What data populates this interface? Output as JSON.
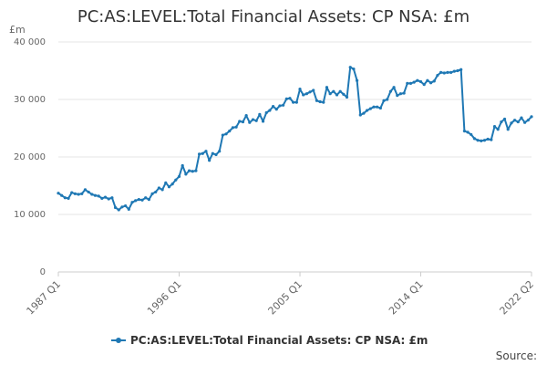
{
  "chart_data": {
    "type": "line",
    "title": "PC:AS:LEVEL:Total Financial Assets: CP NSA: £m",
    "ylabel": "£m",
    "ylim": [
      0,
      40000
    ],
    "yticks": [
      0,
      10000,
      20000,
      30000,
      40000
    ],
    "ytick_labels": [
      "0",
      "10 000",
      "20 000",
      "30 000",
      "40 000"
    ],
    "xticks": [
      {
        "quarter": "1987 Q1",
        "label": "1987 Q1"
      },
      {
        "quarter": "1996 Q1",
        "label": "1996 Q1"
      },
      {
        "quarter": "2005 Q1",
        "label": "2005 Q1"
      },
      {
        "quarter": "2014 Q1",
        "label": "2014 Q1"
      },
      {
        "quarter": "2022 Q2",
        "label": "2022 Q2"
      }
    ],
    "grid": "horizontal",
    "legend_position": "bottom",
    "series": [
      {
        "name": "PC:AS:LEVEL:Total Financial Assets: CP NSA: £m",
        "color": "#1f78b4",
        "points": [
          [
            "1987 Q1",
            13700
          ],
          [
            "1987 Q2",
            13300
          ],
          [
            "1987 Q3",
            12900
          ],
          [
            "1987 Q4",
            12800
          ],
          [
            "1988 Q1",
            13800
          ],
          [
            "1988 Q2",
            13600
          ],
          [
            "1988 Q3",
            13500
          ],
          [
            "1988 Q4",
            13600
          ],
          [
            "1989 Q1",
            14300
          ],
          [
            "1989 Q2",
            13900
          ],
          [
            "1989 Q3",
            13500
          ],
          [
            "1989 Q4",
            13300
          ],
          [
            "1990 Q1",
            13200
          ],
          [
            "1990 Q2",
            12800
          ],
          [
            "1990 Q3",
            13000
          ],
          [
            "1990 Q4",
            12700
          ],
          [
            "1991 Q1",
            12900
          ],
          [
            "1991 Q2",
            11200
          ],
          [
            "1991 Q3",
            10800
          ],
          [
            "1991 Q4",
            11300
          ],
          [
            "1992 Q1",
            11500
          ],
          [
            "1992 Q2",
            10900
          ],
          [
            "1992 Q3",
            12100
          ],
          [
            "1992 Q4",
            12400
          ],
          [
            "1993 Q1",
            12600
          ],
          [
            "1993 Q2",
            12500
          ],
          [
            "1993 Q3",
            12900
          ],
          [
            "1993 Q4",
            12600
          ],
          [
            "1994 Q1",
            13600
          ],
          [
            "1994 Q2",
            13900
          ],
          [
            "1994 Q3",
            14600
          ],
          [
            "1994 Q4",
            14300
          ],
          [
            "1995 Q1",
            15500
          ],
          [
            "1995 Q2",
            14800
          ],
          [
            "1995 Q3",
            15300
          ],
          [
            "1995 Q4",
            16000
          ],
          [
            "1996 Q1",
            16600
          ],
          [
            "1996 Q2",
            18500
          ],
          [
            "1996 Q3",
            17000
          ],
          [
            "1996 Q4",
            17600
          ],
          [
            "1997 Q1",
            17500
          ],
          [
            "1997 Q2",
            17600
          ],
          [
            "1997 Q3",
            20500
          ],
          [
            "1997 Q4",
            20600
          ],
          [
            "1998 Q1",
            21000
          ],
          [
            "1998 Q2",
            19400
          ],
          [
            "1998 Q3",
            20600
          ],
          [
            "1998 Q4",
            20400
          ],
          [
            "1999 Q1",
            21000
          ],
          [
            "1999 Q2",
            23800
          ],
          [
            "1999 Q3",
            24000
          ],
          [
            "1999 Q4",
            24500
          ],
          [
            "2000 Q1",
            25100
          ],
          [
            "2000 Q2",
            25200
          ],
          [
            "2000 Q3",
            26200
          ],
          [
            "2000 Q4",
            26100
          ],
          [
            "2001 Q1",
            27200
          ],
          [
            "2001 Q2",
            26000
          ],
          [
            "2001 Q3",
            26500
          ],
          [
            "2001 Q4",
            26300
          ],
          [
            "2002 Q1",
            27400
          ],
          [
            "2002 Q2",
            26200
          ],
          [
            "2002 Q3",
            27700
          ],
          [
            "2002 Q4",
            28100
          ],
          [
            "2003 Q1",
            28800
          ],
          [
            "2003 Q2",
            28300
          ],
          [
            "2003 Q3",
            28900
          ],
          [
            "2003 Q4",
            29000
          ],
          [
            "2004 Q1",
            30100
          ],
          [
            "2004 Q2",
            30200
          ],
          [
            "2004 Q3",
            29500
          ],
          [
            "2004 Q4",
            29500
          ],
          [
            "2005 Q1",
            31800
          ],
          [
            "2005 Q2",
            30800
          ],
          [
            "2005 Q3",
            31000
          ],
          [
            "2005 Q4",
            31300
          ],
          [
            "2006 Q1",
            31600
          ],
          [
            "2006 Q2",
            29800
          ],
          [
            "2006 Q3",
            29600
          ],
          [
            "2006 Q4",
            29500
          ],
          [
            "2007 Q1",
            32100
          ],
          [
            "2007 Q2",
            31000
          ],
          [
            "2007 Q3",
            31400
          ],
          [
            "2007 Q4",
            30800
          ],
          [
            "2008 Q1",
            31400
          ],
          [
            "2008 Q2",
            30900
          ],
          [
            "2008 Q3",
            30400
          ],
          [
            "2008 Q4",
            35600
          ],
          [
            "2009 Q1",
            35300
          ],
          [
            "2009 Q2",
            33300
          ],
          [
            "2009 Q3",
            27300
          ],
          [
            "2009 Q4",
            27600
          ],
          [
            "2010 Q1",
            28100
          ],
          [
            "2010 Q2",
            28400
          ],
          [
            "2010 Q3",
            28700
          ],
          [
            "2010 Q4",
            28700
          ],
          [
            "2011 Q1",
            28500
          ],
          [
            "2011 Q2",
            29800
          ],
          [
            "2011 Q3",
            30000
          ],
          [
            "2011 Q4",
            31400
          ],
          [
            "2012 Q1",
            32100
          ],
          [
            "2012 Q2",
            30700
          ],
          [
            "2012 Q3",
            31000
          ],
          [
            "2012 Q4",
            31100
          ],
          [
            "2013 Q1",
            32800
          ],
          [
            "2013 Q2",
            32800
          ],
          [
            "2013 Q3",
            33000
          ],
          [
            "2013 Q4",
            33300
          ],
          [
            "2014 Q1",
            33100
          ],
          [
            "2014 Q2",
            32600
          ],
          [
            "2014 Q3",
            33300
          ],
          [
            "2014 Q4",
            32900
          ],
          [
            "2015 Q1",
            33200
          ],
          [
            "2015 Q2",
            34200
          ],
          [
            "2015 Q3",
            34700
          ],
          [
            "2015 Q4",
            34600
          ],
          [
            "2016 Q1",
            34700
          ],
          [
            "2016 Q2",
            34700
          ],
          [
            "2016 Q3",
            34900
          ],
          [
            "2016 Q4",
            35000
          ],
          [
            "2017 Q1",
            35200
          ],
          [
            "2017 Q2",
            24500
          ],
          [
            "2017 Q3",
            24300
          ],
          [
            "2017 Q4",
            23900
          ],
          [
            "2018 Q1",
            23200
          ],
          [
            "2018 Q2",
            22900
          ],
          [
            "2018 Q3",
            22800
          ],
          [
            "2018 Q4",
            22900
          ],
          [
            "2019 Q1",
            23100
          ],
          [
            "2019 Q2",
            23000
          ],
          [
            "2019 Q3",
            25300
          ],
          [
            "2019 Q4",
            24800
          ],
          [
            "2020 Q1",
            26100
          ],
          [
            "2020 Q2",
            26600
          ],
          [
            "2020 Q3",
            24800
          ],
          [
            "2020 Q4",
            25900
          ],
          [
            "2021 Q1",
            26400
          ],
          [
            "2021 Q2",
            26100
          ],
          [
            "2021 Q3",
            26800
          ],
          [
            "2021 Q4",
            26000
          ],
          [
            "2022 Q1",
            26400
          ],
          [
            "2022 Q2",
            27000
          ]
        ]
      }
    ]
  },
  "footer": {
    "source_label": "Source:"
  }
}
